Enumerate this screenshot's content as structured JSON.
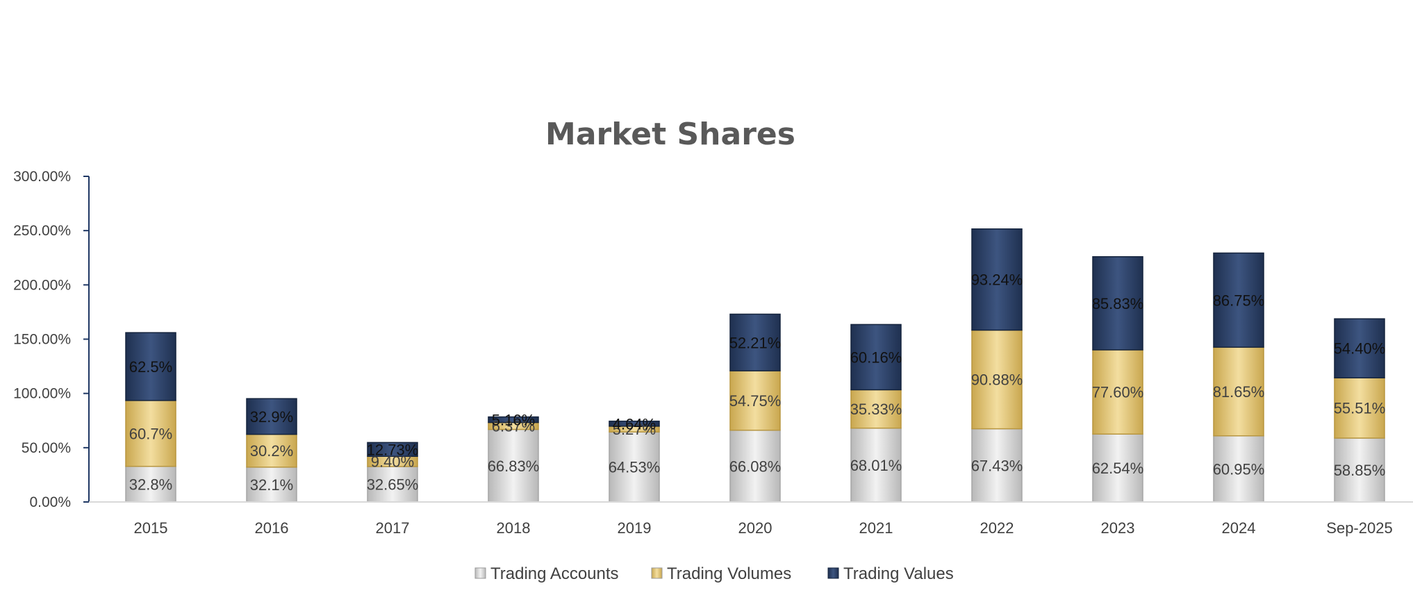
{
  "chart_data": {
    "type": "bar",
    "stacked": true,
    "title": "Market Shares",
    "categories": [
      "2015",
      "2016",
      "2017",
      "2018",
      "2019",
      "2020",
      "2021",
      "2022",
      "2023",
      "2024",
      "Sep-2025"
    ],
    "series": [
      {
        "name": "Trading Accounts",
        "values": [
          32.8,
          32.1,
          32.65,
          66.83,
          64.53,
          66.08,
          68.01,
          67.43,
          62.54,
          60.95,
          58.85
        ],
        "labels": [
          "32.8%",
          "32.1%",
          "32.65%",
          "66.83%",
          "64.53%",
          "66.08%",
          "68.01%",
          "67.43%",
          "62.54%",
          "60.95%",
          "58.85%"
        ],
        "color": "#d9d9d9"
      },
      {
        "name": "Trading Volumes",
        "values": [
          60.7,
          30.2,
          9.4,
          6.37,
          5.27,
          54.75,
          35.33,
          90.88,
          77.6,
          81.65,
          55.51
        ],
        "labels": [
          "60.7%",
          "30.2%",
          "9.40%",
          "6.37%",
          "5.27%",
          "54.75%",
          "35.33%",
          "90.88%",
          "77.60%",
          "81.65%",
          "55.51%"
        ],
        "color": "#e3c77a"
      },
      {
        "name": "Trading Values",
        "values": [
          62.5,
          32.9,
          12.73,
          5.16,
          4.64,
          52.21,
          60.16,
          93.24,
          85.83,
          86.75,
          54.4
        ],
        "labels": [
          "62.5%",
          "32.9%",
          "12.73%",
          "5.16%",
          "4.64%",
          "52.21%",
          "60.16%",
          "93.24%",
          "85.83%",
          "86.75%",
          "54.40%"
        ],
        "color": "#2e4468"
      }
    ],
    "ylim": [
      0,
      300
    ],
    "yticks": [
      "0.00%",
      "50.00%",
      "100.00%",
      "150.00%",
      "200.00%",
      "250.00%",
      "300.00%"
    ],
    "grid": false,
    "legend": "bottom",
    "xlabel": "",
    "ylabel": ""
  }
}
